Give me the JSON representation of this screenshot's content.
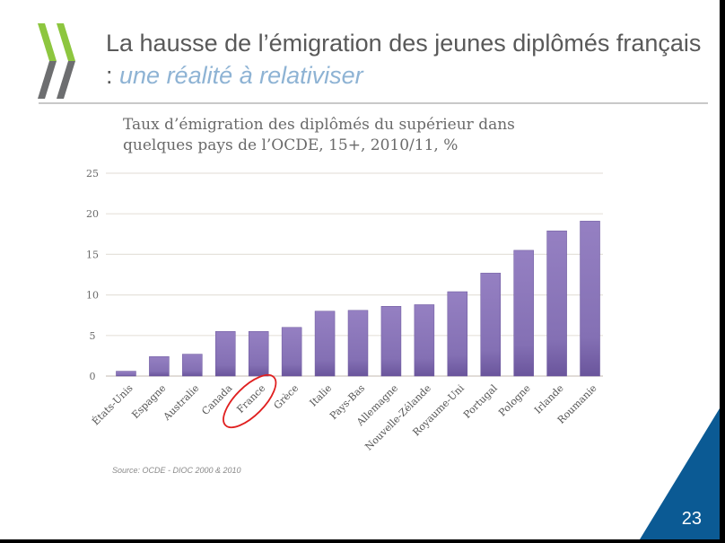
{
  "slide": {
    "title_main": "La hausse de l’émigration des jeunes diplômés français : ",
    "title_emphasis": "une réalité à relativiser",
    "source": "Source:  OCDE - DIOC 2000 & 2010",
    "page_number": "23",
    "logo_icon": "oecd-chevrons-icon",
    "colors": {
      "logo_green": "#8dc63f",
      "logo_gray": "#6d6e70",
      "title_gray": "#595959",
      "title_accent": "#8eb3d4",
      "bar": "#8470b4",
      "bar_dark": "#6a559c",
      "highlight_ellipse": "#e02020",
      "corner_blue": "#0b5a94"
    }
  },
  "chart_data": {
    "type": "bar",
    "title": "Taux d’émigration des diplômés du supérieur dans quelques pays de l’OCDE, 15+, 2010/11, %",
    "xlabel": "",
    "ylabel": "",
    "ylim": [
      0,
      25
    ],
    "yticks": [
      0,
      5,
      10,
      15,
      20,
      25
    ],
    "grid": true,
    "categories": [
      "États-Unis",
      "Espagne",
      "Australie",
      "Canada",
      "France",
      "Grèce",
      "Italie",
      "Pays-Bas",
      "Allemagne",
      "Nouvelle-Zélande",
      "Royaume-Uni",
      "Portugal",
      "Pologne",
      "Irlande",
      "Roumanie"
    ],
    "values": [
      0.6,
      2.4,
      2.7,
      5.5,
      5.5,
      6.0,
      8.0,
      8.1,
      8.6,
      8.8,
      10.4,
      12.7,
      15.5,
      17.9,
      19.1
    ],
    "highlighted_category": "France"
  }
}
